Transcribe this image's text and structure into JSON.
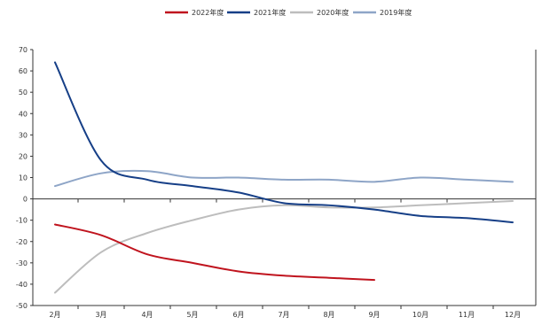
{
  "chart_data": {
    "type": "line",
    "title": "",
    "xlabel": "",
    "ylabel": "",
    "legend_position": "top",
    "grid": false,
    "ylim": [
      -50,
      70
    ],
    "yticks": [
      70,
      60,
      50,
      40,
      30,
      20,
      10,
      0,
      -10,
      -20,
      -30,
      -40,
      -50
    ],
    "categories": [
      "2月",
      "3月",
      "4月",
      "5月",
      "6月",
      "7月",
      "8月",
      "9月",
      "10月",
      "11月",
      "12月"
    ],
    "series": [
      {
        "name": "2022年度",
        "color": "#c0141e",
        "values": [
          -12,
          -17,
          -26,
          -30,
          -34,
          -36,
          -37,
          -38,
          null,
          null,
          null
        ]
      },
      {
        "name": "2021年度",
        "color": "#163f87",
        "values": [
          64,
          18,
          9,
          6,
          3,
          -2,
          -3,
          -5,
          -8,
          -9,
          -11
        ]
      },
      {
        "name": "2020年度",
        "color": "#bdbdbd",
        "values": [
          -44,
          -25,
          -16,
          -10,
          -5,
          -3,
          -4,
          -4,
          -3,
          -2,
          -1
        ]
      },
      {
        "name": "2019年度",
        "color": "#8ea5c7",
        "values": [
          6,
          12,
          13,
          10,
          10,
          9,
          9,
          8,
          10,
          9,
          8
        ]
      }
    ]
  }
}
